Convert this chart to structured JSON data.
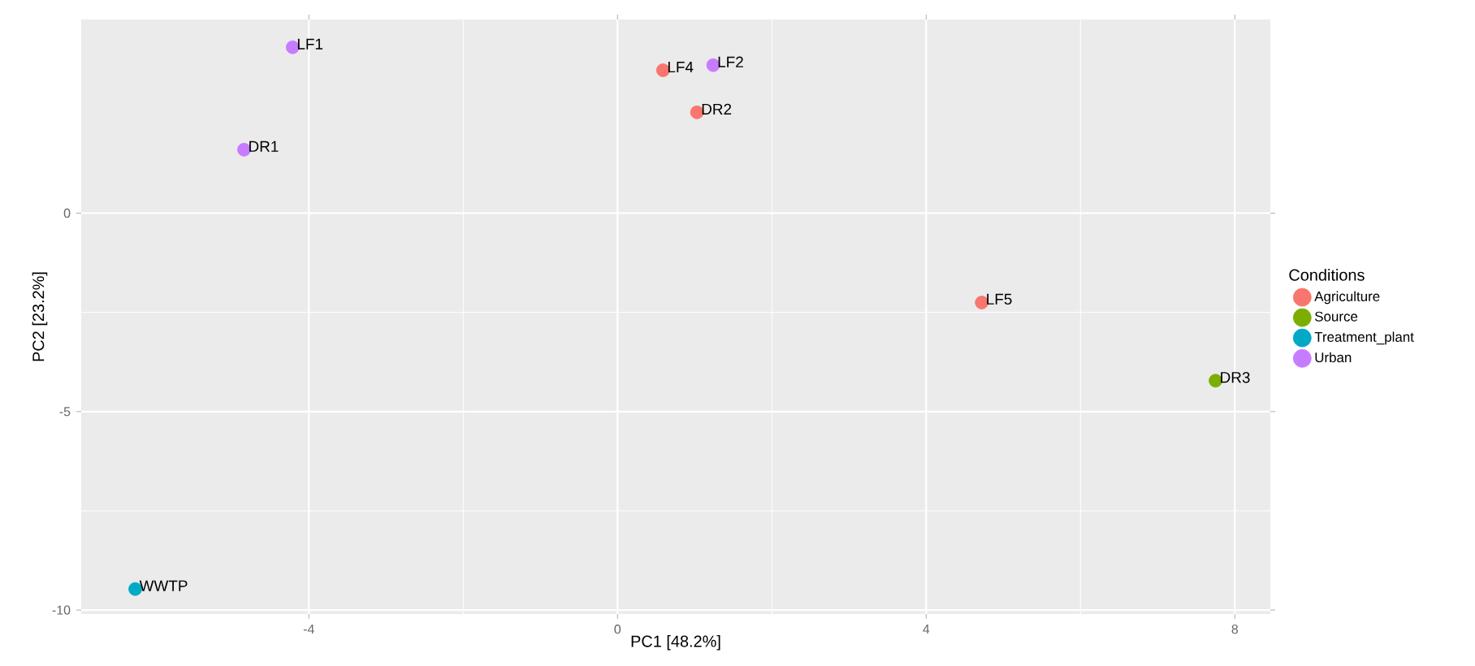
{
  "chart_data": {
    "type": "scatter",
    "xlabel": "PC1  [48.2%]",
    "ylabel": "PC2  [23.2%]",
    "legend_title": "Conditions",
    "series": [
      {
        "name": "Agriculture",
        "color": "#f8766d",
        "x": [
          0.59,
          1.03,
          4.72
        ],
        "values": [
          3.6,
          2.54,
          -2.25
        ]
      },
      {
        "name": "Source",
        "color": "#7cae00",
        "x": [
          7.75
        ],
        "values": [
          -4.22
        ]
      },
      {
        "name": "Treatment_plant",
        "color": "#00a9c5",
        "x": [
          -6.25
        ],
        "values": [
          -9.47
        ]
      },
      {
        "name": "Urban",
        "color": "#c77cff",
        "x": [
          -4.21,
          -4.84,
          1.24
        ],
        "values": [
          4.18,
          1.6,
          3.73
        ]
      }
    ],
    "annotations": [
      {
        "text": "LF1",
        "x": -4.21,
        "y": 4.18
      },
      {
        "text": "DR1",
        "x": -4.84,
        "y": 1.6
      },
      {
        "text": "LF4",
        "x": 0.59,
        "y": 3.6
      },
      {
        "text": "LF2",
        "x": 1.24,
        "y": 3.73
      },
      {
        "text": "DR2",
        "x": 1.03,
        "y": 2.54
      },
      {
        "text": "LF5",
        "x": 4.72,
        "y": -2.25
      },
      {
        "text": "DR3",
        "x": 7.75,
        "y": -4.22
      },
      {
        "text": "WWTP",
        "x": -6.25,
        "y": -9.47
      }
    ],
    "xlim": [
      -6.95,
      8.46
    ],
    "ylim": [
      -10.1,
      4.88
    ],
    "xticks": [
      -4,
      0,
      4,
      8
    ],
    "yticks": [
      -10,
      -5,
      0
    ],
    "grid": true,
    "legend": "right",
    "marker": "circle"
  }
}
